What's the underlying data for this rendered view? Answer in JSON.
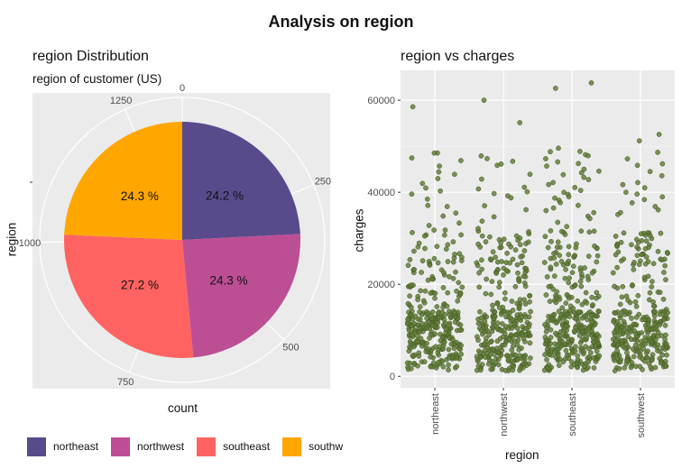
{
  "suptitle": "Analysis on region",
  "chart_data": [
    {
      "type": "pie",
      "title": "region Distribution",
      "subtitle": "region of customer (US)",
      "xlabel": "count",
      "ylabel": "region",
      "theta_ticks": [
        "0",
        "250",
        "500",
        "750",
        "1000",
        "1250"
      ],
      "total": 1338,
      "categories": [
        "northeast",
        "northwest",
        "southeast",
        "southwest"
      ],
      "values": [
        324,
        325,
        364,
        325
      ],
      "labels": [
        "24.2 %",
        "24.3 %",
        "27.2 %",
        "24.3 %"
      ],
      "colors": [
        "#594a8c",
        "#bc4e94",
        "#ff6361",
        "#ffa600"
      ],
      "legend": [
        "northeast",
        "northwest",
        "southeast",
        "southwest"
      ],
      "legend_position": "bottom"
    },
    {
      "type": "scatter",
      "title": "region vs charges",
      "xlabel": "region",
      "ylabel": "charges",
      "categories": [
        "northeast",
        "northwest",
        "southeast",
        "southwest"
      ],
      "counts": [
        324,
        325,
        364,
        325
      ],
      "ylim": [
        0,
        65000
      ],
      "yticks": [
        "0",
        "20000",
        "40000",
        "60000"
      ],
      "point_color": "#5e7a34",
      "grid": true,
      "outliers": {
        "northeast": [
          58571,
          48549,
          48517,
          47462,
          46889,
          45710,
          44423,
          43896,
          42983,
          41919,
          40941,
          40273,
          39597,
          38511,
          37133,
          36910,
          35491,
          34838,
          33307,
          32787
        ],
        "northwest": [
          60021,
          55135,
          47896,
          47305,
          46718,
          46130,
          45863,
          43921,
          42856,
          41097,
          40720,
          40103,
          39725,
          39241,
          38792,
          37079,
          36219,
          34672,
          33732,
          32108
        ],
        "southeast": [
          63770,
          62593,
          49577,
          48885,
          48824,
          48173,
          47928,
          47291,
          46599,
          46255,
          45702,
          45008,
          44585,
          44260,
          43813,
          43254,
          42760,
          42112,
          41676,
          41034,
          40419,
          39983,
          39556,
          39047,
          38746,
          38282,
          37742,
          37165,
          36580,
          36021,
          35585,
          34806,
          34303,
          33475,
          32548,
          31620
        ],
        "southwest": [
          52591,
          51194,
          48675,
          47269,
          46200,
          45863,
          44501,
          43578,
          42124,
          41661,
          40974,
          40003,
          39611,
          38998,
          38415,
          37701,
          36898,
          36197,
          35595,
          35160
        ]
      }
    }
  ]
}
